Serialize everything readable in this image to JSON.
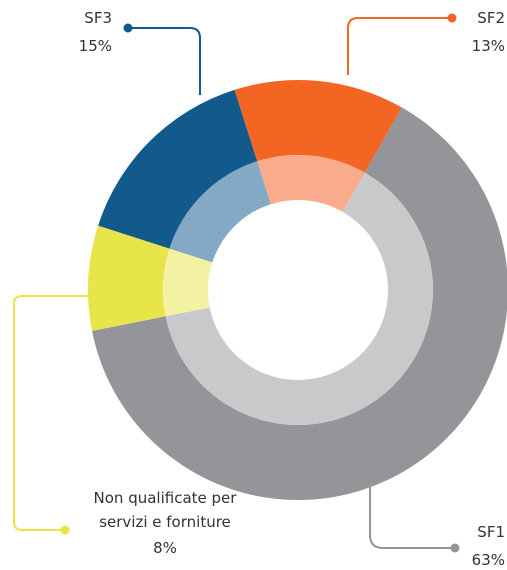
{
  "chart_data": {
    "type": "donut",
    "categories": [
      "SF2",
      "SF1",
      "Non qualificate per servizi e forniture",
      "SF3"
    ],
    "values": [
      13,
      63,
      8,
      15
    ],
    "value_labels": [
      "13%",
      "63%",
      "8%",
      "15%"
    ],
    "colors": [
      "#f26522",
      "#939598",
      "#e8e54a",
      "#135a8c"
    ],
    "inner_colors": [
      "#f9ab8c",
      "#c8c9cb",
      "#f4f2a2",
      "#84a9c4"
    ]
  }
}
